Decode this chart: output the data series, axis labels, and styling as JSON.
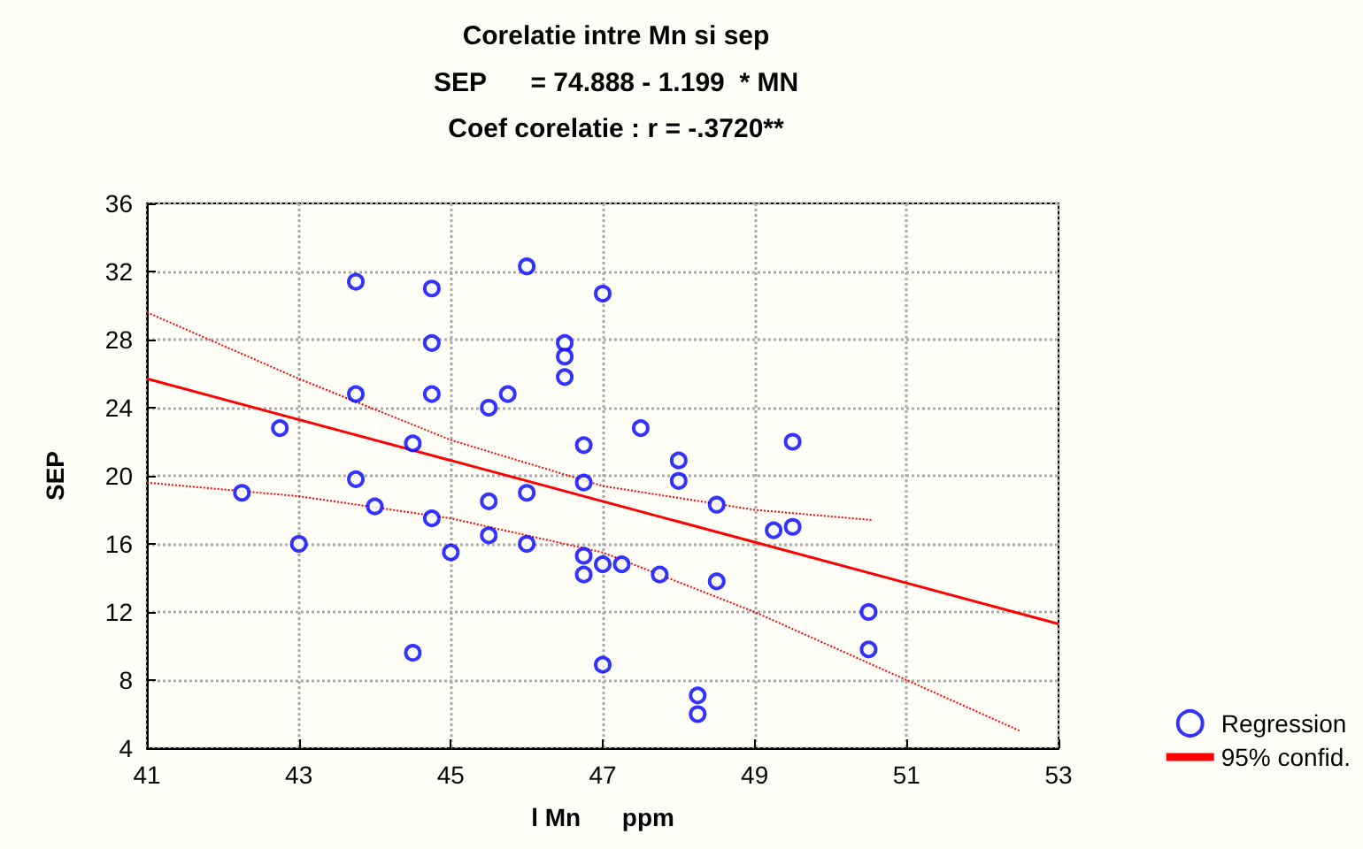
{
  "chart_data": {
    "type": "scatter",
    "title": "Corelatie intre Mn si sep",
    "subtitle": "SEP      = 74.888 - 1.199  * MN\nCoef corelatie : r = -.3720**",
    "xlabel": "l Mn      ppm",
    "ylabel": "SEP",
    "xlim": [
      41,
      53
    ],
    "xticks": [
      41,
      43,
      45,
      47,
      49,
      51,
      53
    ],
    "ylim": [
      4,
      36
    ],
    "yticks": [
      4,
      8,
      12,
      16,
      20,
      24,
      28,
      32,
      36
    ],
    "grid": true,
    "legend": "bottom right",
    "marker": "circle",
    "series": [
      {
        "name": "Regression",
        "color": "#0000ff",
        "x": [
          42.25,
          42.75,
          43.0,
          43.75,
          43.75,
          43.75,
          44.0,
          44.5,
          44.5,
          44.75,
          44.75,
          44.75,
          44.75,
          45.0,
          45.5,
          45.5,
          45.5,
          45.75,
          46.0,
          46.0,
          46.0,
          46.5,
          46.5,
          46.5,
          46.75,
          46.75,
          46.75,
          46.75,
          47.0,
          47.0,
          47.25,
          47.0,
          47.5,
          47.75,
          48.0,
          48.0,
          48.25,
          48.25,
          48.5,
          48.5,
          49.25,
          49.5,
          49.5,
          50.5,
          50.5
        ],
        "values": [
          19.0,
          22.8,
          16.0,
          31.4,
          24.8,
          19.8,
          18.2,
          21.9,
          9.6,
          31.0,
          27.8,
          24.8,
          17.5,
          15.5,
          24.0,
          18.5,
          16.5,
          24.8,
          32.3,
          19.0,
          16.0,
          27.8,
          27.0,
          25.8,
          21.8,
          19.6,
          15.3,
          14.2,
          30.7,
          14.8,
          14.8,
          8.9,
          22.8,
          14.2,
          20.9,
          19.7,
          7.1,
          6.0,
          18.3,
          13.8,
          16.8,
          17.0,
          22.0,
          12.0,
          9.8
        ]
      },
      {
        "type": "line",
        "color": "#ff0000",
        "line_style": "solid",
        "marker": "none",
        "x": [
          41,
          53
        ],
        "values": [
          25.7,
          11.3
        ]
      },
      {
        "name": "95% confid.",
        "type": "line",
        "color": "#ff0000",
        "line_style": "dotted",
        "marker": "none",
        "x": [
          41,
          43,
          45,
          47,
          49,
          50.55
        ],
        "values": [
          29.6,
          25.7,
          22.1,
          19.4,
          18.0,
          17.4
        ]
      },
      {
        "type": "line",
        "color": "#ff0000",
        "line_style": "dotted",
        "marker": "none",
        "x": [
          41,
          43,
          45,
          47,
          49,
          51,
          52.5
        ],
        "values": [
          19.6,
          18.8,
          17.5,
          15.5,
          12.0,
          8.0,
          5.0
        ]
      }
    ]
  }
}
